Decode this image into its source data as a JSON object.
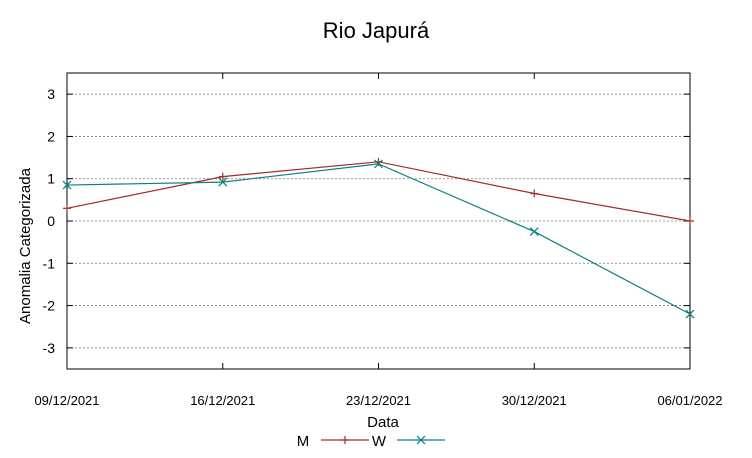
{
  "chart_data": {
    "type": "line",
    "title": "Rio Japurá",
    "xlabel": "Data",
    "ylabel": "Anomalia Categorizada",
    "categories": [
      "09/12/2021",
      "16/12/2021",
      "23/12/2021",
      "30/12/2021",
      "06/01/2022"
    ],
    "y_ticks": [
      "3",
      "2",
      "1",
      "0",
      "-1",
      "-2",
      "-3"
    ],
    "ylim": [
      -3.5,
      3.5
    ],
    "grid": true,
    "legend_position": "bottom",
    "series": [
      {
        "name": "M",
        "values": [
          0.3,
          1.05,
          1.4,
          0.65,
          0.0
        ],
        "color": "#a52a2a",
        "marker": "plus"
      },
      {
        "name": "W",
        "values": [
          0.85,
          0.92,
          1.35,
          -0.25,
          -2.2
        ],
        "color": "#0a8080",
        "marker": "cross"
      }
    ]
  }
}
